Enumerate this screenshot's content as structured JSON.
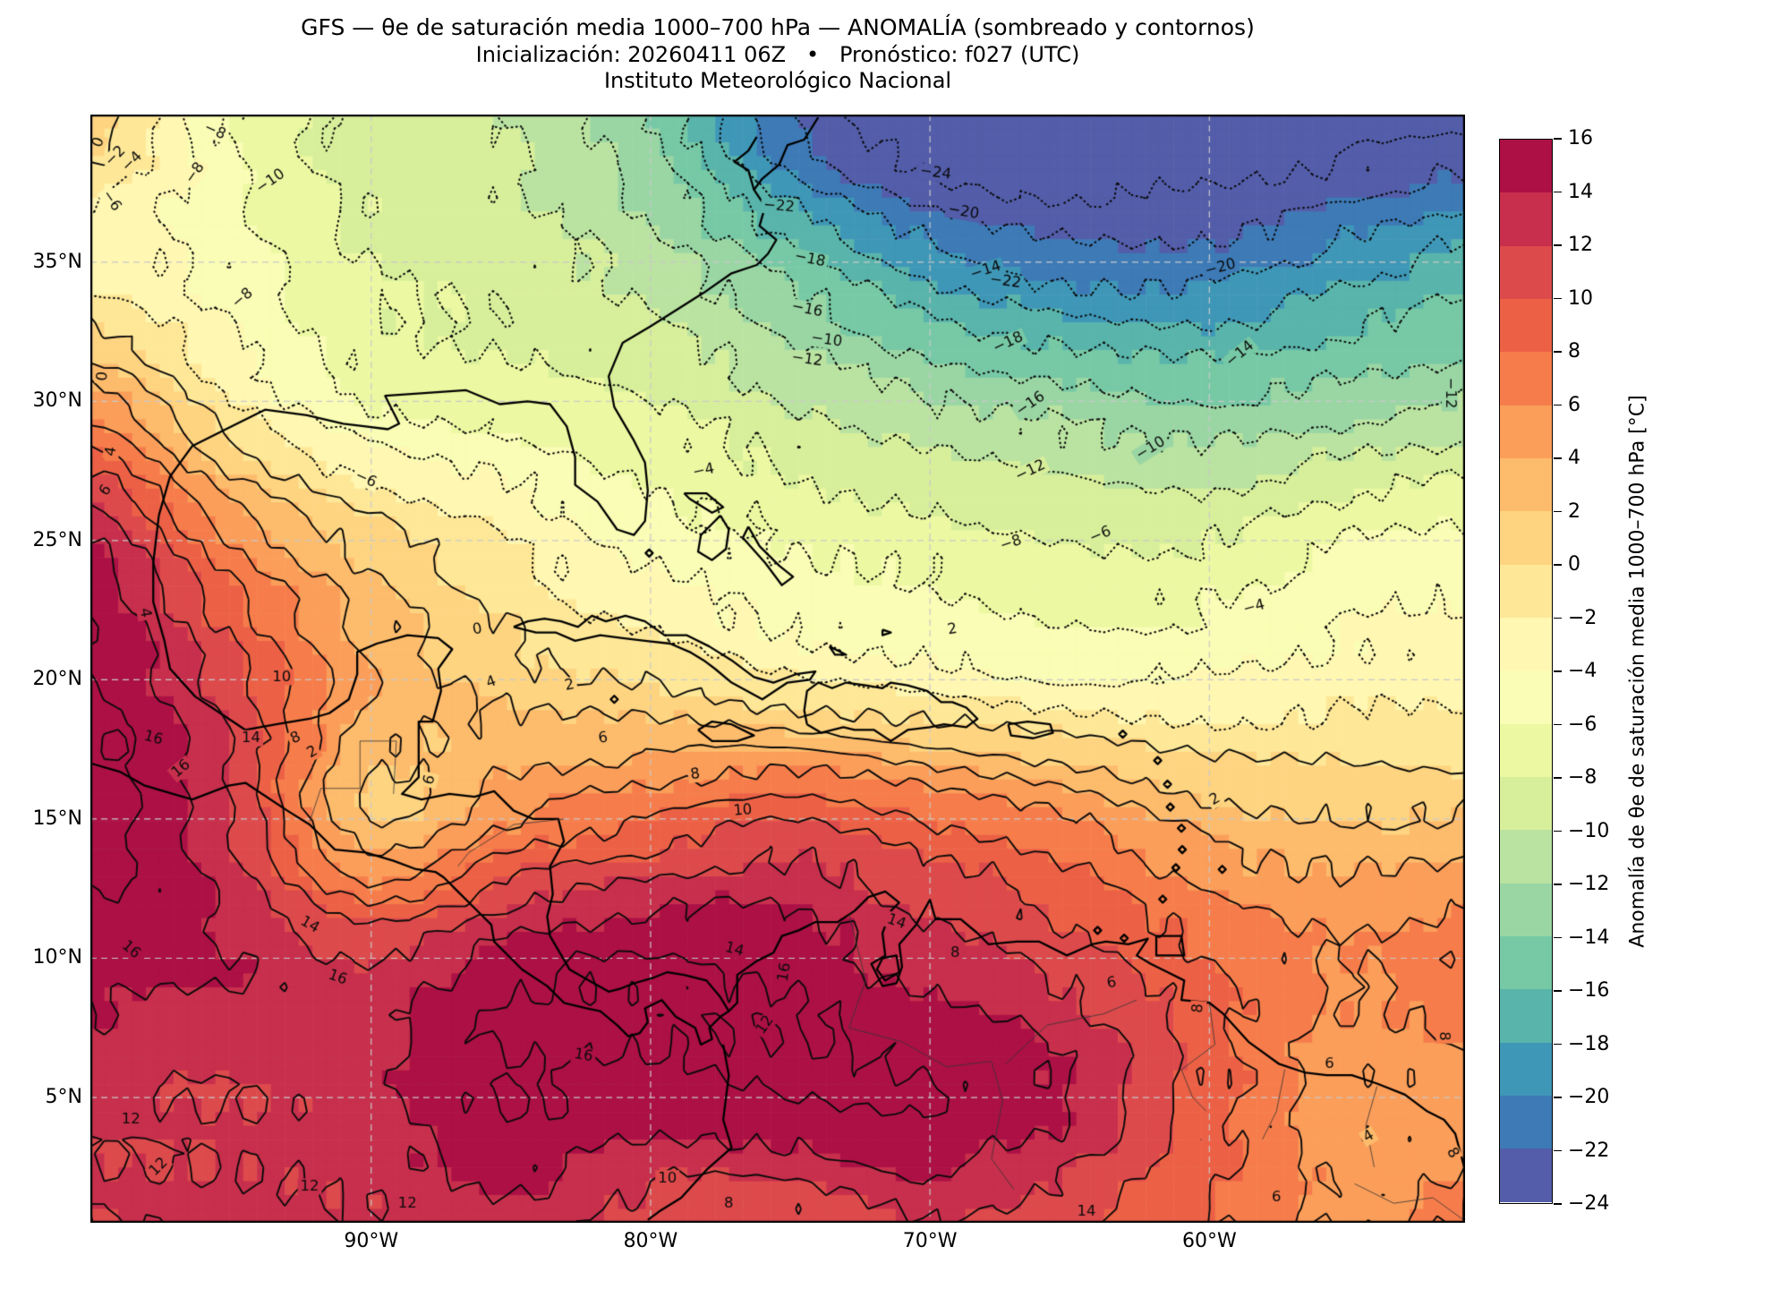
{
  "title": {
    "line1": "GFS — θe de saturación media 1000–700 hPa — ANOMALÍA (sombreado y contornos)",
    "line2": "Inicialización: 20260411 06Z   •   Pronóstico: f027 (UTC)",
    "line3": "Instituto Meteorológico Nacional"
  },
  "axes": {
    "lat_ticks": [
      {
        "label": "35°N",
        "value": 35
      },
      {
        "label": "30°N",
        "value": 30
      },
      {
        "label": "25°N",
        "value": 25
      },
      {
        "label": "20°N",
        "value": 20
      },
      {
        "label": "15°N",
        "value": 15
      },
      {
        "label": "10°N",
        "value": 10
      },
      {
        "label": "5°N",
        "value": 5
      }
    ],
    "lon_ticks": [
      {
        "label": "90°W",
        "value": -90
      },
      {
        "label": "80°W",
        "value": -80
      },
      {
        "label": "70°W",
        "value": -70
      },
      {
        "label": "60°W",
        "value": -60
      }
    ]
  },
  "colorbar": {
    "label": "Anomalía de θe de saturación media 1000–700 hPa [°C]",
    "tick_values": [
      16,
      14,
      12,
      10,
      8,
      6,
      4,
      2,
      0,
      -2,
      -4,
      -6,
      -8,
      -10,
      -12,
      -14,
      -16,
      -18,
      -20,
      -22,
      -24
    ],
    "min": -24,
    "max": 16,
    "step": 2,
    "colors_low_to_high": [
      "#535da9",
      "#3d7ab6",
      "#3f97b7",
      "#59b4ab",
      "#77c9a5",
      "#9ad6a4",
      "#bae3a1",
      "#d7ef9b",
      "#ecf8a2",
      "#f9fdb5",
      "#fff7b2",
      "#fee898",
      "#fed481",
      "#fdbb6c",
      "#fb9e5a",
      "#f67d4b",
      "#ec6146",
      "#dd4a4c",
      "#c72f4c",
      "#ac1045"
    ]
  },
  "chart_data": {
    "type": "heatmap",
    "title": "GFS — θe de saturación media 1000–700 hPa — ANOMALÍA (sombreado y contornos)",
    "units": "°C",
    "level_min": -24,
    "level_max": 16,
    "levels_step": 2,
    "negative_contours": "dotted",
    "positive_contours": "solid",
    "lon_range": [
      -100.05,
      -50.85
    ],
    "lat_range": [
      0.5,
      40.3
    ],
    "grid_lons": [
      -100,
      -95,
      -90,
      -85,
      -80,
      -75,
      -70,
      -65,
      -60,
      -55,
      -50
    ],
    "grid_lats": [
      40,
      35,
      30,
      25,
      20,
      15,
      10,
      5,
      0
    ],
    "anomaly_grid": [
      [
        1.0,
        -6.0,
        -9.0,
        -10.0,
        -14.0,
        -22.0,
        -26.0,
        -26.5,
        -26.0,
        -25.0,
        -24.0
      ],
      [
        -3.0,
        -5.0,
        -8.0,
        -9.0,
        -11.0,
        -15.0,
        -19.0,
        -21.0,
        -21.0,
        -19.0,
        -17.0
      ],
      [
        5.0,
        -2.0,
        -6.0,
        -7.0,
        -8.0,
        -10.0,
        -12.0,
        -13.0,
        -14.0,
        -13.0,
        -12.0
      ],
      [
        14.0,
        6.0,
        1.0,
        -2.0,
        -5.0,
        -6.0,
        -7.0,
        -8.0,
        -8.0,
        -6.0,
        -5.0
      ],
      [
        16.0,
        11.0,
        4.0,
        1.0,
        0.0,
        -2.0,
        -3.0,
        -4.0,
        -4.0,
        -3.0,
        -3.0
      ],
      [
        17.0,
        12.0,
        2.0,
        6.0,
        8.0,
        10.0,
        8.0,
        6.0,
        3.0,
        2.0,
        2.0
      ],
      [
        15.0,
        14.0,
        12.0,
        15.0,
        16.0,
        15.0,
        13.0,
        11.0,
        8.0,
        6.0,
        8.0
      ],
      [
        12.5,
        12.0,
        13.5,
        16.0,
        15.0,
        16.0,
        16.0,
        14.0,
        9.0,
        4.5,
        5.0
      ],
      [
        12.0,
        12.5,
        12.0,
        13.0,
        10.5,
        9.5,
        12.0,
        10.0,
        8.0,
        6.0,
        7.0
      ]
    ],
    "contour_labels": [
      {
        "v": 0,
        "lon": -99.75,
        "lat": 39.3,
        "rot": -70
      },
      {
        "v": -2,
        "lon": -99.15,
        "lat": 38.8,
        "rot": -45
      },
      {
        "v": -4,
        "lon": -98.55,
        "lat": 38.6,
        "rot": -45
      },
      {
        "v": -8,
        "lon": -95.6,
        "lat": 39.7,
        "rot": 25
      },
      {
        "v": -8,
        "lon": -96.3,
        "lat": 38.2,
        "rot": -55
      },
      {
        "v": -6,
        "lon": -99.3,
        "lat": 37.2,
        "rot": 55
      },
      {
        "v": -10,
        "lon": -93.6,
        "lat": 37.9,
        "rot": -35
      },
      {
        "v": -8,
        "lon": -94.6,
        "lat": 33.7,
        "rot": -40
      },
      {
        "v": -6,
        "lon": -90.2,
        "lat": 27.2,
        "rot": 25
      },
      {
        "v": 0,
        "lon": -99.6,
        "lat": 30.9,
        "rot": -85
      },
      {
        "v": 4,
        "lon": -99.3,
        "lat": 28.2,
        "rot": -80
      },
      {
        "v": 6,
        "lon": -99.5,
        "lat": 26.8,
        "rot": -55
      },
      {
        "v": 4,
        "lon": -98.1,
        "lat": 22.4,
        "rot": 80
      },
      {
        "v": 16,
        "lon": -97.8,
        "lat": 17.9,
        "rot": 15
      },
      {
        "v": 16,
        "lon": -96.8,
        "lat": 16.8,
        "rot": -40
      },
      {
        "v": 14,
        "lon": -94.3,
        "lat": 17.9,
        "rot": 0
      },
      {
        "v": 10,
        "lon": -93.2,
        "lat": 20.1,
        "rot": 0
      },
      {
        "v": 8,
        "lon": -92.7,
        "lat": 17.9,
        "rot": -25
      },
      {
        "v": 2,
        "lon": -92.1,
        "lat": 17.4,
        "rot": -30
      },
      {
        "v": 0,
        "lon": -86.2,
        "lat": 21.8,
        "rot": -10
      },
      {
        "v": 2,
        "lon": -82.9,
        "lat": 19.8,
        "rot": -12
      },
      {
        "v": 4,
        "lon": -85.7,
        "lat": 19.9,
        "rot": -20
      },
      {
        "v": 6,
        "lon": -81.7,
        "lat": 17.9,
        "rot": -8
      },
      {
        "v": 6,
        "lon": -87.9,
        "lat": 16.4,
        "rot": -75
      },
      {
        "v": 8,
        "lon": -78.4,
        "lat": 16.6,
        "rot": -8
      },
      {
        "v": 10,
        "lon": -76.7,
        "lat": 15.3,
        "rot": -5
      },
      {
        "v": 14,
        "lon": -77.0,
        "lat": 10.3,
        "rot": 15
      },
      {
        "v": 16,
        "lon": -75.2,
        "lat": 9.5,
        "rot": -80
      },
      {
        "v": 12,
        "lon": -75.9,
        "lat": 7.6,
        "rot": -55
      },
      {
        "v": 14,
        "lon": -71.2,
        "lat": 11.3,
        "rot": 20
      },
      {
        "v": 8,
        "lon": -69.1,
        "lat": 10.2,
        "rot": 0
      },
      {
        "v": 16,
        "lon": -82.4,
        "lat": 6.5,
        "rot": 10
      },
      {
        "v": 16,
        "lon": -98.6,
        "lat": 10.3,
        "rot": 40
      },
      {
        "v": 16,
        "lon": -91.2,
        "lat": 9.3,
        "rot": 20
      },
      {
        "v": 14,
        "lon": -92.2,
        "lat": 11.2,
        "rot": 30
      },
      {
        "v": 12,
        "lon": -98.6,
        "lat": 4.2,
        "rot": 0
      },
      {
        "v": 12,
        "lon": -97.6,
        "lat": 2.5,
        "rot": -45
      },
      {
        "v": 12,
        "lon": -92.2,
        "lat": 1.8,
        "rot": 0
      },
      {
        "v": 12,
        "lon": -88.7,
        "lat": 1.2,
        "rot": 0
      },
      {
        "v": 10,
        "lon": -79.4,
        "lat": 2.1,
        "rot": 0
      },
      {
        "v": 8,
        "lon": -77.2,
        "lat": 1.2,
        "rot": 0
      },
      {
        "v": 14,
        "lon": -64.4,
        "lat": 0.9,
        "rot": 0
      },
      {
        "v": 6,
        "lon": -63.5,
        "lat": 9.1,
        "rot": -10
      },
      {
        "v": 8,
        "lon": -60.4,
        "lat": 8.2,
        "rot": -85
      },
      {
        "v": 6,
        "lon": -55.7,
        "lat": 6.2,
        "rot": 0
      },
      {
        "v": 4,
        "lon": -54.3,
        "lat": 3.6,
        "rot": -30
      },
      {
        "v": 8,
        "lon": -51.6,
        "lat": 7.2,
        "rot": 90
      },
      {
        "v": 8,
        "lon": -51.3,
        "lat": 3.0,
        "rot": 60
      },
      {
        "v": 6,
        "lon": -57.6,
        "lat": 1.4,
        "rot": 0
      },
      {
        "v": 2,
        "lon": -59.8,
        "lat": 15.7,
        "rot": -30
      },
      {
        "v": 2,
        "lon": -69.2,
        "lat": 21.8,
        "rot": -10
      },
      {
        "v": -4,
        "lon": -78.1,
        "lat": 27.5,
        "rot": -12
      },
      {
        "v": -4,
        "lon": -58.4,
        "lat": 22.6,
        "rot": -15
      },
      {
        "v": -6,
        "lon": -63.9,
        "lat": 25.2,
        "rot": -22
      },
      {
        "v": -8,
        "lon": -67.1,
        "lat": 24.9,
        "rot": -18
      },
      {
        "v": -10,
        "lon": -62.1,
        "lat": 28.3,
        "rot": -32
      },
      {
        "v": -12,
        "lon": -66.4,
        "lat": 27.5,
        "rot": -25
      },
      {
        "v": -12,
        "lon": -51.4,
        "lat": 30.3,
        "rot": 90
      },
      {
        "v": -14,
        "lon": -58.9,
        "lat": 31.7,
        "rot": -40
      },
      {
        "v": -16,
        "lon": -66.4,
        "lat": 29.9,
        "rot": -35
      },
      {
        "v": -16,
        "lon": -74.4,
        "lat": 33.3,
        "rot": 12
      },
      {
        "v": -18,
        "lon": -67.2,
        "lat": 32.1,
        "rot": -25
      },
      {
        "v": -18,
        "lon": -74.3,
        "lat": 35.1,
        "rot": 12
      },
      {
        "v": -20,
        "lon": -68.8,
        "lat": 36.8,
        "rot": 10
      },
      {
        "v": -20,
        "lon": -59.6,
        "lat": 34.8,
        "rot": -15
      },
      {
        "v": -22,
        "lon": -75.4,
        "lat": 37.0,
        "rot": 5
      },
      {
        "v": -22,
        "lon": -67.3,
        "lat": 34.3,
        "rot": 8
      },
      {
        "v": -24,
        "lon": -69.8,
        "lat": 38.2,
        "rot": 8
      },
      {
        "v": -14,
        "lon": -68.0,
        "lat": 34.7,
        "rot": -18
      },
      {
        "v": -10,
        "lon": -73.7,
        "lat": 32.2,
        "rot": 8
      },
      {
        "v": -12,
        "lon": -74.4,
        "lat": 31.5,
        "rot": 8
      }
    ]
  }
}
